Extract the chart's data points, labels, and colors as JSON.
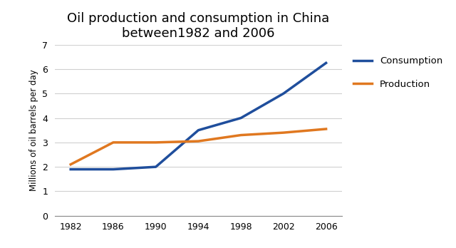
{
  "title_line1": "Oil production and consumption in China",
  "title_line2": "between1982 and 2006",
  "ylabel": "Millions of oil barrels per day",
  "years": [
    1982,
    1986,
    1990,
    1994,
    1998,
    2002,
    2006
  ],
  "consumption": [
    1.9,
    1.9,
    2.0,
    3.5,
    4.0,
    5.0,
    6.25
  ],
  "production": [
    2.1,
    3.0,
    3.0,
    3.05,
    3.3,
    3.4,
    3.55
  ],
  "consumption_color": "#1f4e9c",
  "production_color": "#e07820",
  "ylim": [
    0,
    7
  ],
  "yticks": [
    0,
    1,
    2,
    3,
    4,
    5,
    6,
    7
  ],
  "xlim_left": 1980.5,
  "xlim_right": 2007.5,
  "background_color": "#ffffff",
  "title_fontsize": 13,
  "axis_label_fontsize": 8.5,
  "tick_fontsize": 9,
  "legend_labels": [
    "Consumption",
    "Production"
  ],
  "line_width": 2.5,
  "grid_color": "#d0d0d0"
}
